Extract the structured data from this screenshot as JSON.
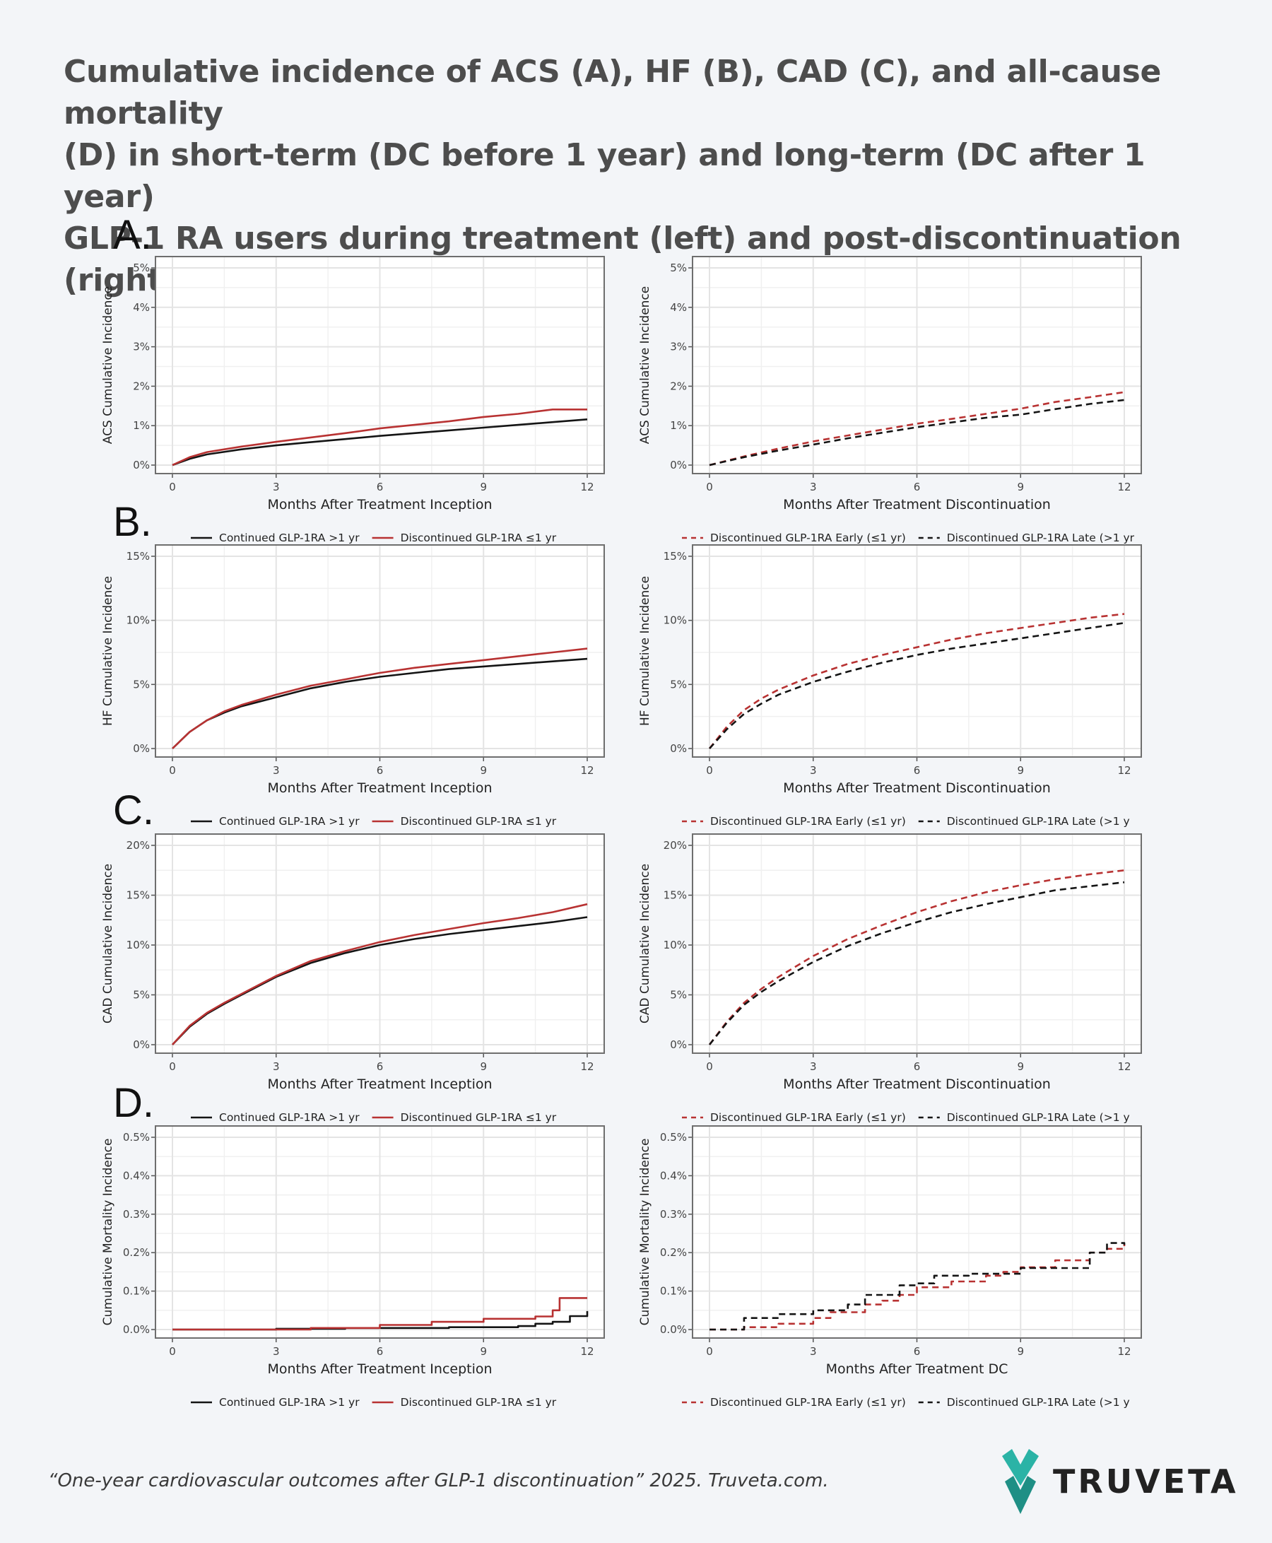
{
  "title_lines": [
    "Cumulative incidence of ACS (A), HF (B), CAD (C), and all-cause mortality",
    "(D) in short-term (DC before 1 year) and long-term (DC after 1 year)",
    "GLP-1 RA users during treatment (left) and post-discontinuation (right)"
  ],
  "footer": {
    "citation": "“One-year cardiovascular outcomes after GLP-1 discontinuation” 2025. Truveta.com.",
    "logo_text": "TRUVETA"
  },
  "colors": {
    "red": "#b83232",
    "black": "#141414",
    "grid": "#e4e4e4",
    "panel_border": "#6e6e6e",
    "logo_teal": "#2bb3a6"
  },
  "chart_data": [
    {
      "panel": "A.",
      "side": "left",
      "type": "line",
      "ylabel": "ACS Cumulative Incidence",
      "xlabel": "Months After Treatment Inception",
      "xlim": [
        0,
        12
      ],
      "ylim": [
        0,
        5
      ],
      "y_unit": "%",
      "xticks": [
        "0",
        "3",
        "6",
        "9",
        "12"
      ],
      "yticks": [
        "0%",
        "1%",
        "2%",
        "3%",
        "4%",
        "5%"
      ],
      "series": [
        {
          "name": "Continued GLP-1RA >1 yr",
          "color": "black",
          "dash": false,
          "x": [
            0,
            0.5,
            1,
            2,
            3,
            4,
            5,
            6,
            7,
            8,
            9,
            10,
            11,
            12
          ],
          "y": [
            0,
            0.16,
            0.27,
            0.4,
            0.5,
            0.58,
            0.66,
            0.74,
            0.81,
            0.88,
            0.95,
            1.02,
            1.09,
            1.16
          ]
        },
        {
          "name": "Discontinued GLP-1RA ≤1 yr",
          "color": "red",
          "dash": false,
          "x": [
            0,
            0.5,
            1,
            2,
            3,
            4,
            5,
            6,
            7,
            8,
            9,
            10,
            11,
            12
          ],
          "y": [
            0,
            0.2,
            0.33,
            0.47,
            0.59,
            0.7,
            0.81,
            0.93,
            1.02,
            1.11,
            1.22,
            1.3,
            1.41,
            1.41
          ]
        }
      ]
    },
    {
      "panel": "A.",
      "side": "right",
      "type": "line",
      "ylabel": "ACS Cumulative Incidence",
      "xlabel": "Months After Treatment Discontinuation",
      "xlim": [
        0,
        12
      ],
      "ylim": [
        0,
        5
      ],
      "y_unit": "%",
      "xticks": [
        "0",
        "3",
        "6",
        "9",
        "12"
      ],
      "yticks": [
        "0%",
        "1%",
        "2%",
        "3%",
        "4%",
        "5%"
      ],
      "series": [
        {
          "name": "Discontinued GLP-1RA Early (≤1 yr)",
          "color": "red",
          "dash": true,
          "x": [
            0,
            1,
            2,
            3,
            4,
            5,
            6,
            7,
            8,
            9,
            10,
            11,
            12
          ],
          "y": [
            0,
            0.22,
            0.42,
            0.6,
            0.75,
            0.9,
            1.05,
            1.17,
            1.3,
            1.43,
            1.6,
            1.72,
            1.85
          ]
        },
        {
          "name": "Discontinued GLP-1RA Late (>1 yr",
          "color": "black",
          "dash": true,
          "x": [
            0,
            1,
            2,
            3,
            4,
            5,
            6,
            7,
            8,
            9,
            10,
            11,
            12
          ],
          "y": [
            0,
            0.2,
            0.37,
            0.52,
            0.68,
            0.82,
            0.96,
            1.08,
            1.2,
            1.28,
            1.42,
            1.55,
            1.65
          ]
        }
      ]
    },
    {
      "panel": "B.",
      "side": "left",
      "type": "line",
      "ylabel": "HF Cumulative Incidence",
      "xlabel": "Months After Treatment Inception",
      "xlim": [
        0,
        12
      ],
      "ylim": [
        0,
        15
      ],
      "y_unit": "%",
      "xticks": [
        "0",
        "3",
        "6",
        "9",
        "12"
      ],
      "yticks": [
        "0%",
        "5%",
        "10%",
        "15%"
      ],
      "series": [
        {
          "name": "Continued GLP-1RA >1 yr",
          "color": "black",
          "dash": false,
          "x": [
            0,
            0.5,
            1,
            1.5,
            2,
            3,
            4,
            5,
            6,
            7,
            8,
            9,
            10,
            11,
            12
          ],
          "y": [
            0,
            1.3,
            2.2,
            2.8,
            3.3,
            4.0,
            4.7,
            5.2,
            5.6,
            5.9,
            6.2,
            6.4,
            6.6,
            6.8,
            7.0
          ]
        },
        {
          "name": "Discontinued GLP-1RA ≤1 yr",
          "color": "red",
          "dash": false,
          "x": [
            0,
            0.5,
            1,
            1.5,
            2,
            3,
            4,
            5,
            6,
            7,
            8,
            9,
            10,
            11,
            12
          ],
          "y": [
            0,
            1.3,
            2.2,
            2.9,
            3.4,
            4.2,
            4.9,
            5.4,
            5.9,
            6.3,
            6.6,
            6.9,
            7.2,
            7.5,
            7.8
          ]
        }
      ]
    },
    {
      "panel": "B.",
      "side": "right",
      "type": "line",
      "ylabel": "HF Cumulative Incidence",
      "xlabel": "Months After Treatment Discontinuation",
      "xlim": [
        0,
        12
      ],
      "ylim": [
        0,
        15
      ],
      "y_unit": "%",
      "xticks": [
        "0",
        "3",
        "6",
        "9",
        "12"
      ],
      "yticks": [
        "0%",
        "5%",
        "10%",
        "15%"
      ],
      "series": [
        {
          "name": "Discontinued GLP-1RA Early (≤1 yr)",
          "color": "red",
          "dash": true,
          "x": [
            0,
            0.5,
            1,
            1.5,
            2,
            3,
            4,
            5,
            6,
            7,
            8,
            9,
            10,
            11,
            12
          ],
          "y": [
            0,
            1.7,
            3.0,
            3.9,
            4.6,
            5.7,
            6.6,
            7.3,
            7.9,
            8.5,
            9.0,
            9.4,
            9.8,
            10.2,
            10.5
          ]
        },
        {
          "name": "Discontinued GLP-1RA Late (>1 y",
          "color": "black",
          "dash": true,
          "x": [
            0,
            0.5,
            1,
            1.5,
            2,
            3,
            4,
            5,
            6,
            7,
            8,
            9,
            10,
            11,
            12
          ],
          "y": [
            0,
            1.5,
            2.7,
            3.5,
            4.2,
            5.2,
            6.0,
            6.7,
            7.3,
            7.8,
            8.2,
            8.6,
            9.0,
            9.4,
            9.8
          ]
        }
      ]
    },
    {
      "panel": "C.",
      "side": "left",
      "type": "line",
      "ylabel": "CAD Cumulative Incidence",
      "xlabel": "Months After Treatment Inception",
      "xlim": [
        0,
        12
      ],
      "ylim": [
        0,
        20
      ],
      "y_unit": "%",
      "xticks": [
        "0",
        "3",
        "6",
        "9",
        "12"
      ],
      "yticks": [
        "0%",
        "5%",
        "10%",
        "15%",
        "20%"
      ],
      "series": [
        {
          "name": "Continued GLP-1RA >1 yr",
          "color": "black",
          "dash": false,
          "x": [
            0,
            0.5,
            1,
            1.5,
            2,
            3,
            4,
            5,
            6,
            7,
            8,
            9,
            10,
            11,
            12
          ],
          "y": [
            0,
            1.8,
            3.1,
            4.1,
            5.0,
            6.8,
            8.2,
            9.2,
            10.0,
            10.6,
            11.1,
            11.5,
            11.9,
            12.3,
            12.8
          ]
        },
        {
          "name": "Discontinued GLP-1RA ≤1 yr",
          "color": "red",
          "dash": false,
          "x": [
            0,
            0.5,
            1,
            1.5,
            2,
            3,
            4,
            5,
            6,
            7,
            8,
            9,
            10,
            11,
            12
          ],
          "y": [
            0,
            1.9,
            3.2,
            4.2,
            5.1,
            6.9,
            8.4,
            9.4,
            10.3,
            11.0,
            11.6,
            12.2,
            12.7,
            13.3,
            14.1
          ]
        }
      ]
    },
    {
      "panel": "C.",
      "side": "right",
      "type": "line",
      "ylabel": "CAD Cumulative Incidence",
      "xlabel": "Months After Treatment Discontinuation",
      "xlim": [
        0,
        12
      ],
      "ylim": [
        0,
        20
      ],
      "y_unit": "%",
      "xticks": [
        "0",
        "3",
        "6",
        "9",
        "12"
      ],
      "yticks": [
        "0%",
        "5%",
        "10%",
        "15%",
        "20%"
      ],
      "series": [
        {
          "name": "Discontinued GLP-1RA Early (≤1 yr)",
          "color": "red",
          "dash": true,
          "x": [
            0,
            0.5,
            1,
            1.5,
            2,
            3,
            4,
            5,
            6,
            7,
            8,
            9,
            10,
            11,
            12
          ],
          "y": [
            0,
            2.3,
            4.2,
            5.6,
            6.8,
            8.9,
            10.6,
            12.0,
            13.3,
            14.4,
            15.3,
            16.0,
            16.6,
            17.1,
            17.5
          ]
        },
        {
          "name": "Discontinued GLP-1RA Late (>1 y",
          "color": "black",
          "dash": true,
          "x": [
            0,
            0.5,
            1,
            1.5,
            2,
            3,
            4,
            5,
            6,
            7,
            8,
            9,
            10,
            11,
            12
          ],
          "y": [
            0,
            2.2,
            4.0,
            5.3,
            6.4,
            8.3,
            9.9,
            11.2,
            12.3,
            13.3,
            14.1,
            14.8,
            15.5,
            15.9,
            16.3
          ]
        }
      ]
    },
    {
      "panel": "D.",
      "side": "left",
      "type": "line",
      "ylabel": "Cumulative Mortality Incidence",
      "xlabel": "Months After Treatment Inception",
      "xlim": [
        0,
        12
      ],
      "ylim": [
        0,
        0.5
      ],
      "y_unit": "%",
      "xticks": [
        "0",
        "3",
        "6",
        "9",
        "12"
      ],
      "yticks": [
        "0.0%",
        "0.1%",
        "0.2%",
        "0.3%",
        "0.4%",
        "0.5%"
      ],
      "series": [
        {
          "name": "Continued GLP-1RA >1 yr",
          "color": "black",
          "dash": false,
          "step": true,
          "x": [
            0,
            3,
            5,
            8,
            10,
            10.5,
            11,
            11.5,
            12
          ],
          "y": [
            0,
            0.002,
            0.004,
            0.006,
            0.009,
            0.015,
            0.02,
            0.035,
            0.048
          ]
        },
        {
          "name": "Discontinued GLP-1RA ≤1 yr",
          "color": "red",
          "dash": false,
          "step": true,
          "x": [
            0,
            4,
            6,
            7.5,
            9,
            10.5,
            11,
            11.2,
            12
          ],
          "y": [
            0,
            0.004,
            0.012,
            0.02,
            0.028,
            0.034,
            0.05,
            0.082,
            0.082
          ]
        }
      ]
    },
    {
      "panel": "D.",
      "side": "right",
      "type": "line",
      "ylabel": "Cumulative Mortality Incidence",
      "xlabel": "Months After Treatment DC",
      "xlim": [
        0,
        12
      ],
      "ylim": [
        0,
        0.5
      ],
      "y_unit": "%",
      "xticks": [
        "0",
        "3",
        "6",
        "9",
        "12"
      ],
      "yticks": [
        "0.0%",
        "0.1%",
        "0.2%",
        "0.3%",
        "0.4%",
        "0.5%"
      ],
      "series": [
        {
          "name": "Discontinued GLP-1RA Early (≤1 yr)",
          "color": "red",
          "dash": true,
          "step": true,
          "x": [
            0,
            1,
            2,
            3,
            3.5,
            4.5,
            5,
            5.5,
            6,
            7,
            8,
            8.5,
            9,
            10,
            11,
            11.5,
            12
          ],
          "y": [
            0,
            0.006,
            0.015,
            0.03,
            0.045,
            0.065,
            0.075,
            0.09,
            0.11,
            0.125,
            0.14,
            0.15,
            0.162,
            0.18,
            0.2,
            0.21,
            0.222
          ]
        },
        {
          "name": "Discontinued GLP-1RA Late (>1 y",
          "color": "black",
          "dash": true,
          "step": true,
          "x": [
            0,
            1,
            2,
            3,
            4,
            4.5,
            5.5,
            6,
            6.5,
            7.5,
            9,
            10.5,
            11,
            11.5,
            12
          ],
          "y": [
            0,
            0.03,
            0.04,
            0.05,
            0.065,
            0.09,
            0.115,
            0.12,
            0.14,
            0.145,
            0.16,
            0.16,
            0.2,
            0.225,
            0.22
          ]
        }
      ]
    }
  ]
}
